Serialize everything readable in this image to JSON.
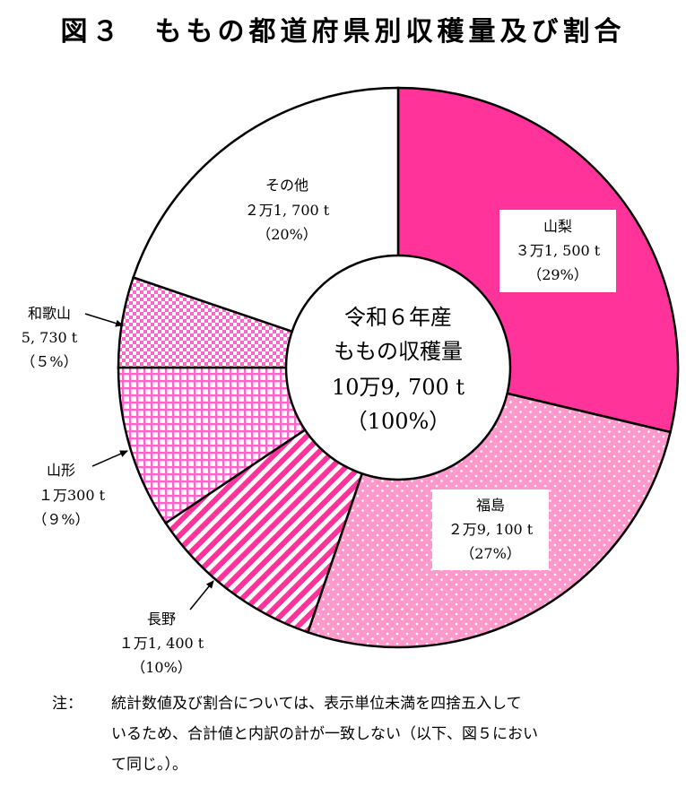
{
  "title": "図３　ももの都道府県別収穫量及び割合",
  "chart_data": {
    "type": "pie",
    "title": "図３　ももの都道府県別収穫量及び割合",
    "center": {
      "line1": "令和６年産",
      "line2": "ももの収穫量",
      "line3": "10万9, 700 t",
      "line4": "（100%）"
    },
    "slices": [
      {
        "name": "山梨",
        "amount": "３万1, 500 t",
        "percent_label": "（29%）",
        "value": 31500,
        "percent": 29,
        "color": "#FF3399",
        "pattern": "solid"
      },
      {
        "name": "福島",
        "amount": "２万9, 100 t",
        "percent_label": "（27%）",
        "value": 29100,
        "percent": 27,
        "color": "#FF99CC",
        "pattern": "dots"
      },
      {
        "name": "長野",
        "amount": "１万1, 400 t",
        "percent_label": "（10%）",
        "value": 11400,
        "percent": 10,
        "color": "#FF3399",
        "pattern": "stripes"
      },
      {
        "name": "山形",
        "amount": "１万300 t",
        "percent_label": "（９%）",
        "value": 10300,
        "percent": 9,
        "color": "#FF66CC",
        "pattern": "grid"
      },
      {
        "name": "和歌山",
        "amount": "5, 730 t",
        "percent_label": "（５%）",
        "value": 5730,
        "percent": 5,
        "color": "#FF66CC",
        "pattern": "checker"
      },
      {
        "name": "その他",
        "amount": "２万1, 700 t",
        "percent_label": "（20%）",
        "value": 21700,
        "percent": 20,
        "color": "#FFFFFF",
        "pattern": "none"
      }
    ]
  },
  "note": {
    "prefix": "注：",
    "line1": "統計数値及び割合については、表示単位未満を四捨五入して",
    "line2": "いるため、合計値と内訳の計が一致しない（以下、図５におい",
    "line3": "て同じ。）。"
  }
}
